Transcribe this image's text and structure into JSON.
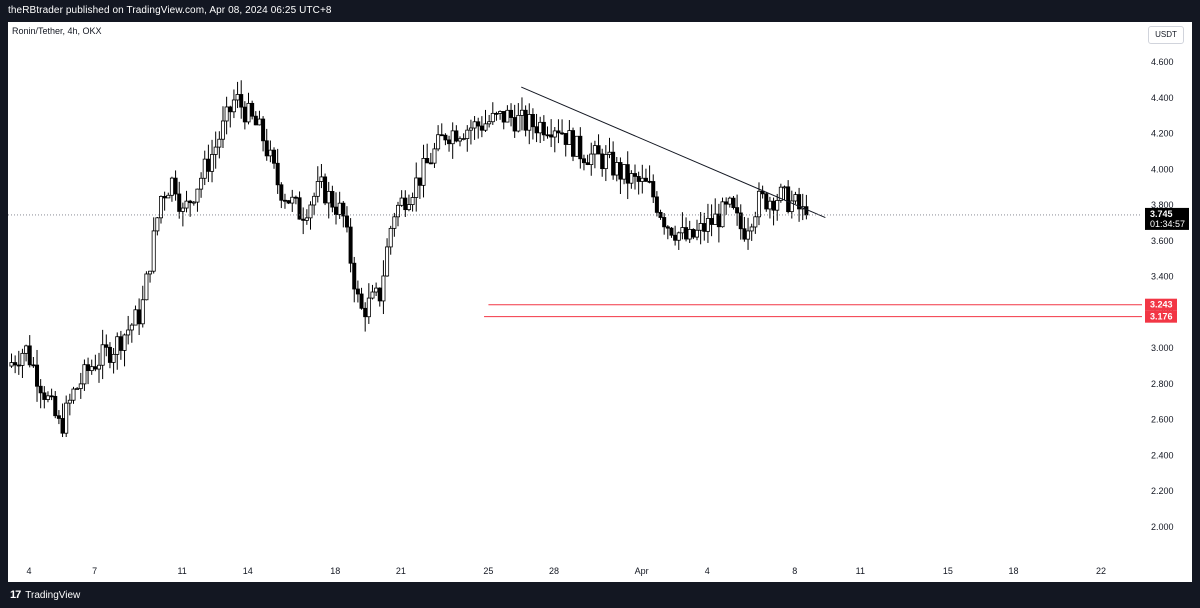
{
  "header": {
    "published": "theRBtrader published on TradingView.com, Apr 08, 2024 06:25 UTC+8"
  },
  "footer": {
    "brand": "TradingView",
    "logo": "17"
  },
  "colors": {
    "bull": "#ffffff",
    "bear": "#000000",
    "wick": "#000000",
    "support": "#f23645",
    "price_tag": "#000000"
  },
  "chart_data": {
    "type": "candlestick",
    "symbol": "Ronin/Tether, 4h, OKX",
    "currency": "USDT",
    "ylim": [
      1.85,
      4.8
    ],
    "y_ticks": [
      4.6,
      4.4,
      4.2,
      4.0,
      3.8,
      3.6,
      3.4,
      3.2,
      3.0,
      2.8,
      2.6,
      2.4,
      2.2,
      2.0
    ],
    "x_ticks": [
      {
        "label": "4",
        "day": 4
      },
      {
        "label": "7",
        "day": 7
      },
      {
        "label": "11",
        "day": 11
      },
      {
        "label": "14",
        "day": 14
      },
      {
        "label": "18",
        "day": 18
      },
      {
        "label": "21",
        "day": 21
      },
      {
        "label": "25",
        "day": 25
      },
      {
        "label": "28",
        "day": 28
      },
      {
        "label": "Apr",
        "day": 32
      },
      {
        "label": "4",
        "day": 35
      },
      {
        "label": "8",
        "day": 39
      },
      {
        "label": "11",
        "day": 42
      },
      {
        "label": "15",
        "day": 46
      },
      {
        "label": "18",
        "day": 49
      },
      {
        "label": "22",
        "day": 53
      }
    ],
    "xlim_days": [
      3.0,
      54.5
    ],
    "last_price": "3.745",
    "last_price_value": 3.745,
    "countdown": "01:34:57",
    "support_levels": [
      {
        "label": "3.243",
        "value": 3.243,
        "from_day": 25.0
      },
      {
        "label": "3.176",
        "value": 3.176,
        "from_day": 24.8
      }
    ],
    "trendline": {
      "start_day": 26.5,
      "start_value": 4.46,
      "end_day": 40.4,
      "end_value": 3.73
    },
    "series_ohlc_key_points": [
      [
        3.2,
        2.9
      ],
      [
        4.0,
        3.0
      ],
      [
        5.6,
        2.55
      ],
      [
        6.2,
        2.75
      ],
      [
        7.0,
        2.9
      ],
      [
        8.0,
        3.0
      ],
      [
        9.3,
        3.2
      ],
      [
        10.2,
        3.85
      ],
      [
        10.8,
        3.95
      ],
      [
        11.2,
        3.75
      ],
      [
        11.8,
        3.9
      ],
      [
        12.6,
        4.1
      ],
      [
        13.6,
        4.4
      ],
      [
        14.8,
        4.2
      ],
      [
        15.6,
        3.9
      ],
      [
        16.6,
        3.75
      ],
      [
        17.5,
        3.9
      ],
      [
        18.5,
        3.75
      ],
      [
        19.3,
        3.2
      ],
      [
        20.2,
        3.3
      ],
      [
        20.8,
        3.75
      ],
      [
        22.0,
        3.95
      ],
      [
        23.2,
        4.2
      ],
      [
        24.8,
        4.25
      ],
      [
        26.0,
        4.3
      ],
      [
        27.0,
        4.25
      ],
      [
        28.3,
        4.25
      ],
      [
        29.3,
        4.1
      ],
      [
        30.5,
        4.05
      ],
      [
        31.5,
        3.95
      ],
      [
        32.5,
        3.9
      ],
      [
        33.3,
        3.7
      ],
      [
        34.3,
        3.6
      ],
      [
        35.3,
        3.7
      ],
      [
        36.2,
        3.78
      ],
      [
        36.8,
        3.65
      ],
      [
        37.5,
        3.82
      ],
      [
        38.5,
        3.85
      ],
      [
        39.2,
        3.8
      ],
      [
        39.6,
        3.745
      ]
    ]
  }
}
